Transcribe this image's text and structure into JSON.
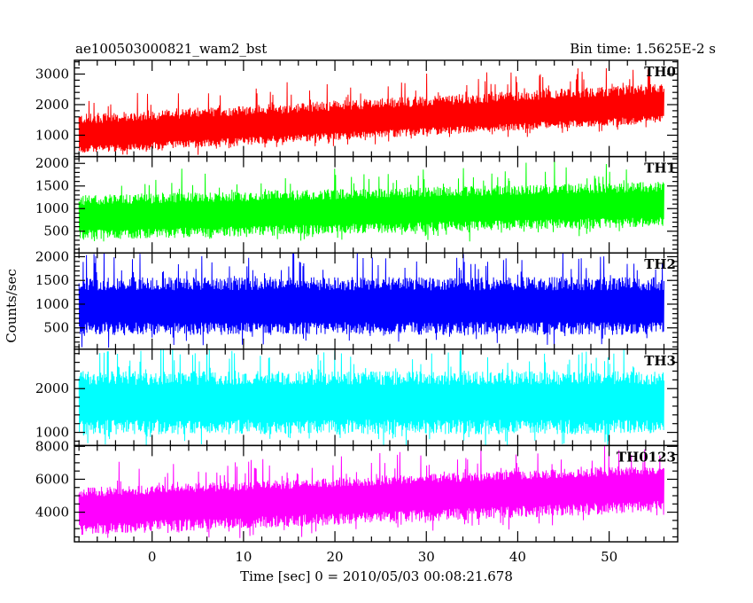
{
  "chart_data": {
    "type": "line",
    "title_left": "ae100503000821_wam2_bst",
    "title_right": "Bin time: 1.5625E-2 s",
    "xlabel": "Time [sec] 0 = 2010/05/03 00:08:21.678",
    "ylabel": "Counts/sec",
    "xlim": [
      -8.5,
      57.5
    ],
    "x_ticks": [
      0,
      10,
      20,
      30,
      40,
      50
    ],
    "x_minor_step": 2,
    "data_x_range": [
      -8,
      56
    ],
    "grid": false,
    "panels": [
      {
        "name": "TH0",
        "color": "#ff0000",
        "ylim": [
          300,
          3450
        ],
        "y_ticks": [
          1000,
          2000,
          3000
        ],
        "y_minor_step": 200,
        "trend_start": 950,
        "trend_end": 1950,
        "band_low": 550,
        "band_high": 750,
        "spike_max": 1300
      },
      {
        "name": "TH1",
        "color": "#00ff00",
        "ylim": [
          20,
          2150
        ],
        "y_ticks": [
          500,
          1000,
          1500,
          2000
        ],
        "y_minor_step": 100,
        "trend_start": 800,
        "trend_end": 1100,
        "band_low": 500,
        "band_high": 500,
        "spike_max": 900
      },
      {
        "name": "TH2",
        "color": "#0000ff",
        "ylim": [
          50,
          2080
        ],
        "y_ticks": [
          500,
          1000,
          1500,
          2000
        ],
        "y_minor_step": 100,
        "trend_start": 950,
        "trend_end": 950,
        "band_low": 600,
        "band_high": 620,
        "spike_max": 1100
      },
      {
        "name": "TH3",
        "color": "#00ffff",
        "ylim": [
          700,
          2900
        ],
        "y_ticks": [
          1000,
          2000
        ],
        "y_minor_step": 200,
        "trend_start": 1700,
        "trend_end": 1700,
        "band_low": 750,
        "band_high": 700,
        "spike_max": 1200
      },
      {
        "name": "TH0123",
        "color": "#ff00ff",
        "ylim": [
          2200,
          8050
        ],
        "y_ticks": [
          4000,
          6000,
          8000
        ],
        "y_minor_step": 500,
        "trend_start": 4200,
        "trend_end": 5600,
        "band_low": 1600,
        "band_high": 1300,
        "spike_max": 2500
      }
    ]
  }
}
